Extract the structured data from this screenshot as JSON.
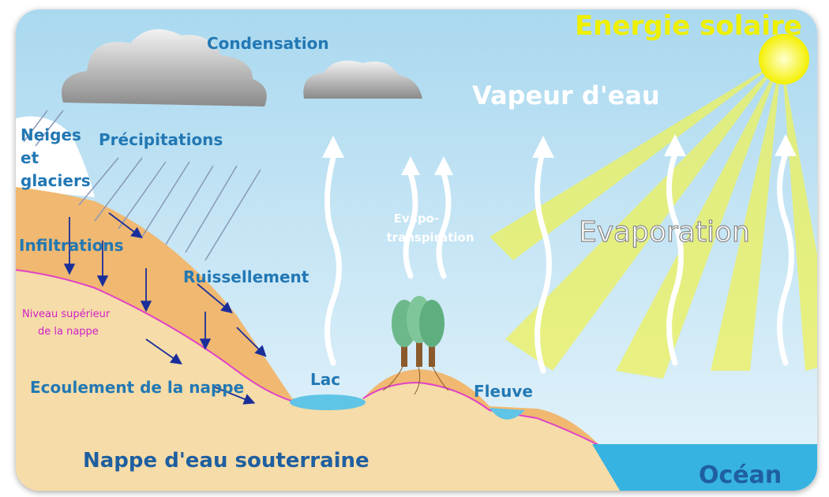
{
  "labels": {
    "solar": "Energie solaire",
    "condensation": "Condensation",
    "vapour": "Vapeur d'eau",
    "snow": [
      "Neiges",
      "et",
      "glaciers"
    ],
    "precipitation": "Précipitations",
    "infiltration": "Infiltrations",
    "runoff": "Ruissellement",
    "water_table": [
      "Niveau supérieur",
      "de la nappe"
    ],
    "evapotranspiration": [
      "Evapo-",
      "transpiration"
    ],
    "evaporation": "Evaporation",
    "lake": "Lac",
    "river": "Fleuve",
    "groundwater_flow": "Ecoulement de la nappe",
    "aquifer": "Nappe d'eau souterraine",
    "ocean": "Océan"
  }
}
